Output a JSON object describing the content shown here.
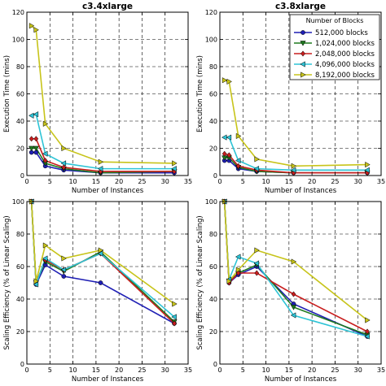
{
  "colors": {
    "512,000 blocks": "#1f1fb4",
    "1,024,000 blocks": "#1e7a1e",
    "2,048,000 blocks": "#c81e1e",
    "4,096,000 blocks": "#2ec4d6",
    "8,192,000 blocks": "#c7c41a"
  },
  "markers": {
    "512,000 blocks": "circle",
    "1,024,000 blocks": "triangle-down",
    "2,048,000 blocks": "diamond",
    "4,096,000 blocks": "triangle-left",
    "8,192,000 blocks": "triangle-right"
  },
  "legend": {
    "title": "Number of Blocks",
    "placement": "top-right of top-right panel"
  },
  "chart_data": [
    {
      "type": "line",
      "title": "c3.4xlarge",
      "xlabel": "Number of Instances",
      "ylabel": "Execution Time (mins)",
      "xlim": [
        0,
        35
      ],
      "ylim": [
        0,
        120
      ],
      "xticks": [
        0,
        5,
        10,
        15,
        20,
        25,
        30,
        35
      ],
      "yticks": [
        0,
        20,
        40,
        60,
        80,
        100,
        120
      ],
      "grid": true,
      "x": [
        1,
        2,
        4,
        8,
        16,
        32
      ],
      "series": [
        {
          "name": "512,000 blocks",
          "values": [
            17,
            17,
            7,
            4,
            2,
            2
          ]
        },
        {
          "name": "1,024,000 blocks",
          "values": [
            20,
            20,
            9,
            5,
            2,
            3
          ]
        },
        {
          "name": "2,048,000 blocks",
          "values": [
            27,
            27,
            11,
            6,
            3,
            3
          ]
        },
        {
          "name": "4,096,000 blocks",
          "values": [
            44,
            45,
            16,
            9,
            5,
            5
          ]
        },
        {
          "name": "8,192,000 blocks",
          "values": [
            110,
            107,
            38,
            20,
            10,
            9
          ]
        }
      ]
    },
    {
      "type": "line",
      "title": "c3.8xlarge",
      "xlabel": "Number of Instances",
      "ylabel": "Execution Time (mins)",
      "xlim": [
        0,
        35
      ],
      "ylim": [
        0,
        120
      ],
      "xticks": [
        0,
        5,
        10,
        15,
        20,
        25,
        30,
        35
      ],
      "yticks": [
        0,
        20,
        40,
        60,
        80,
        100,
        120
      ],
      "grid": true,
      "x": [
        1,
        2,
        4,
        8,
        16,
        32
      ],
      "series": [
        {
          "name": "512,000 blocks",
          "values": [
            11,
            11,
            5,
            3,
            2,
            2
          ]
        },
        {
          "name": "1,024,000 blocks",
          "values": [
            13,
            13,
            6,
            3,
            2,
            2
          ]
        },
        {
          "name": "2,048,000 blocks",
          "values": [
            16,
            15,
            7,
            4,
            2,
            2
          ]
        },
        {
          "name": "4,096,000 blocks",
          "values": [
            28,
            28,
            11,
            5,
            4,
            4
          ]
        },
        {
          "name": "8,192,000 blocks",
          "values": [
            70,
            69,
            29,
            12,
            7,
            8
          ]
        }
      ]
    },
    {
      "type": "line",
      "title": "",
      "xlabel": "Number of Instances",
      "ylabel": "Scaling Efficiency (% of Linear Scaling)",
      "xlim": [
        0,
        35
      ],
      "ylim": [
        0,
        100
      ],
      "xticks": [
        0,
        5,
        10,
        15,
        20,
        25,
        30,
        35
      ],
      "yticks": [
        0,
        20,
        40,
        60,
        80,
        100
      ],
      "grid": true,
      "x": [
        1,
        2,
        4,
        8,
        16,
        32
      ],
      "series": [
        {
          "name": "512,000 blocks",
          "values": [
            100,
            49,
            61,
            54,
            50,
            25
          ]
        },
        {
          "name": "1,024,000 blocks",
          "values": [
            100,
            50,
            63,
            57,
            69,
            26
          ]
        },
        {
          "name": "2,048,000 blocks",
          "values": [
            100,
            50,
            64,
            58,
            68,
            25
          ]
        },
        {
          "name": "4,096,000 blocks",
          "values": [
            100,
            49,
            65,
            58,
            68,
            29
          ]
        },
        {
          "name": "8,192,000 blocks",
          "values": [
            100,
            51,
            73,
            65,
            70,
            37
          ]
        }
      ]
    },
    {
      "type": "line",
      "title": "",
      "xlabel": "Number of Instances",
      "ylabel": "Scaling Efficiency (% of Linear Scaling)",
      "xlim": [
        0,
        35
      ],
      "ylim": [
        0,
        100
      ],
      "xticks": [
        0,
        5,
        10,
        15,
        20,
        25,
        30,
        35
      ],
      "yticks": [
        0,
        20,
        40,
        60,
        80,
        100
      ],
      "grid": true,
      "x": [
        1,
        2,
        4,
        8,
        16,
        32
      ],
      "series": [
        {
          "name": "512,000 blocks",
          "values": [
            100,
            50,
            55,
            60,
            37,
            17
          ]
        },
        {
          "name": "1,024,000 blocks",
          "values": [
            100,
            51,
            56,
            61,
            35,
            18
          ]
        },
        {
          "name": "2,048,000 blocks",
          "values": [
            100,
            50,
            56,
            56,
            43,
            20
          ]
        },
        {
          "name": "4,096,000 blocks",
          "values": [
            100,
            52,
            66,
            62,
            30,
            17
          ]
        },
        {
          "name": "8,192,000 blocks",
          "values": [
            100,
            51,
            58,
            70,
            63,
            27
          ]
        }
      ]
    }
  ]
}
